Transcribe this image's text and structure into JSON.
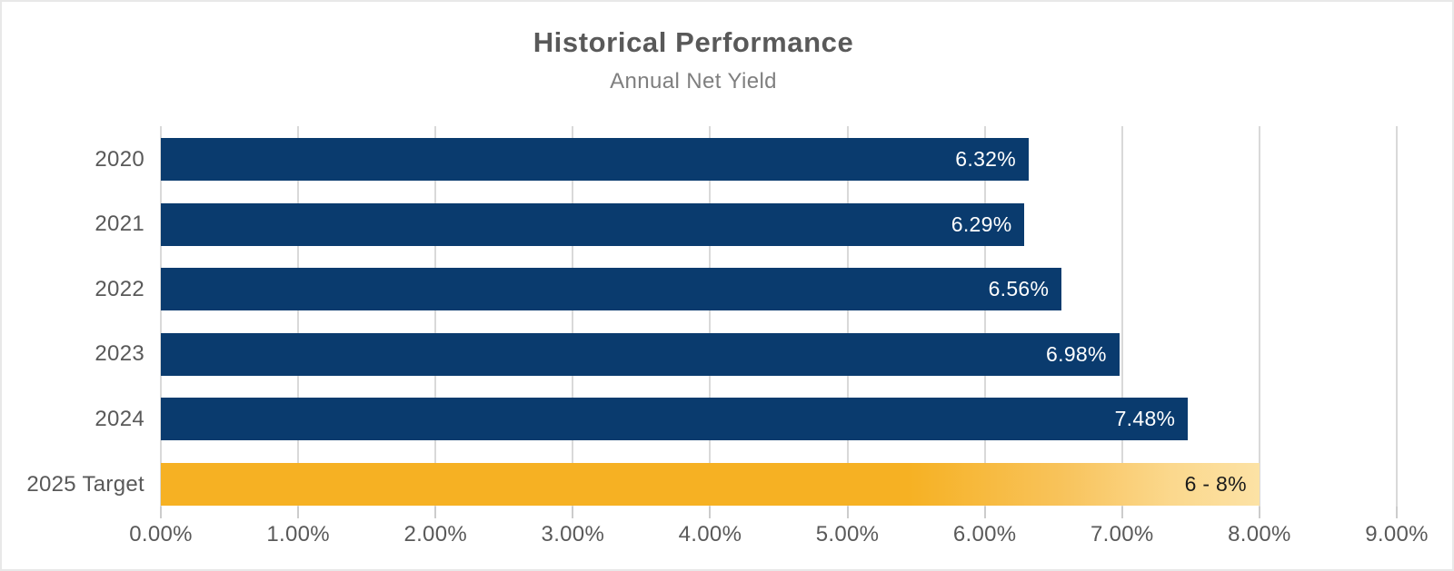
{
  "chart_data": {
    "type": "bar",
    "orientation": "horizontal",
    "title": "Historical Performance",
    "subtitle": "Annual Net Yield",
    "categories": [
      "2020",
      "2021",
      "2022",
      "2023",
      "2024",
      "2025 Target"
    ],
    "bars": [
      {
        "category": "2020",
        "value": 6.32,
        "label": "6.32%",
        "style": "navy"
      },
      {
        "category": "2021",
        "value": 6.29,
        "label": "6.29%",
        "style": "navy"
      },
      {
        "category": "2022",
        "value": 6.56,
        "label": "6.56%",
        "style": "navy"
      },
      {
        "category": "2023",
        "value": 6.98,
        "label": "6.98%",
        "style": "navy"
      },
      {
        "category": "2024",
        "value": 7.48,
        "label": "7.48%",
        "style": "navy"
      },
      {
        "category": "2025 Target",
        "value": 8.0,
        "label": "6 - 8%",
        "style": "gold-gradient",
        "target_range": [
          6,
          8
        ]
      }
    ],
    "x_axis": {
      "min": 0,
      "max": 9,
      "tick_step": 1,
      "tick_labels": [
        "0.00%",
        "1.00%",
        "2.00%",
        "3.00%",
        "4.00%",
        "5.00%",
        "6.00%",
        "7.00%",
        "8.00%",
        "9.00%"
      ]
    },
    "grid": true,
    "legend": "none",
    "colors": {
      "navy_bar": "#0a3b6e",
      "gold_bar": "#f6b123",
      "gold_bar_fade": "#fce2a5",
      "gridline": "#d9d9d9",
      "title_text": "#595959",
      "subtitle_text": "#7f7f7f",
      "axis_text": "#595959",
      "value_text_on_navy": "#ffffff",
      "value_text_on_gold": "#1b1b1b"
    }
  }
}
